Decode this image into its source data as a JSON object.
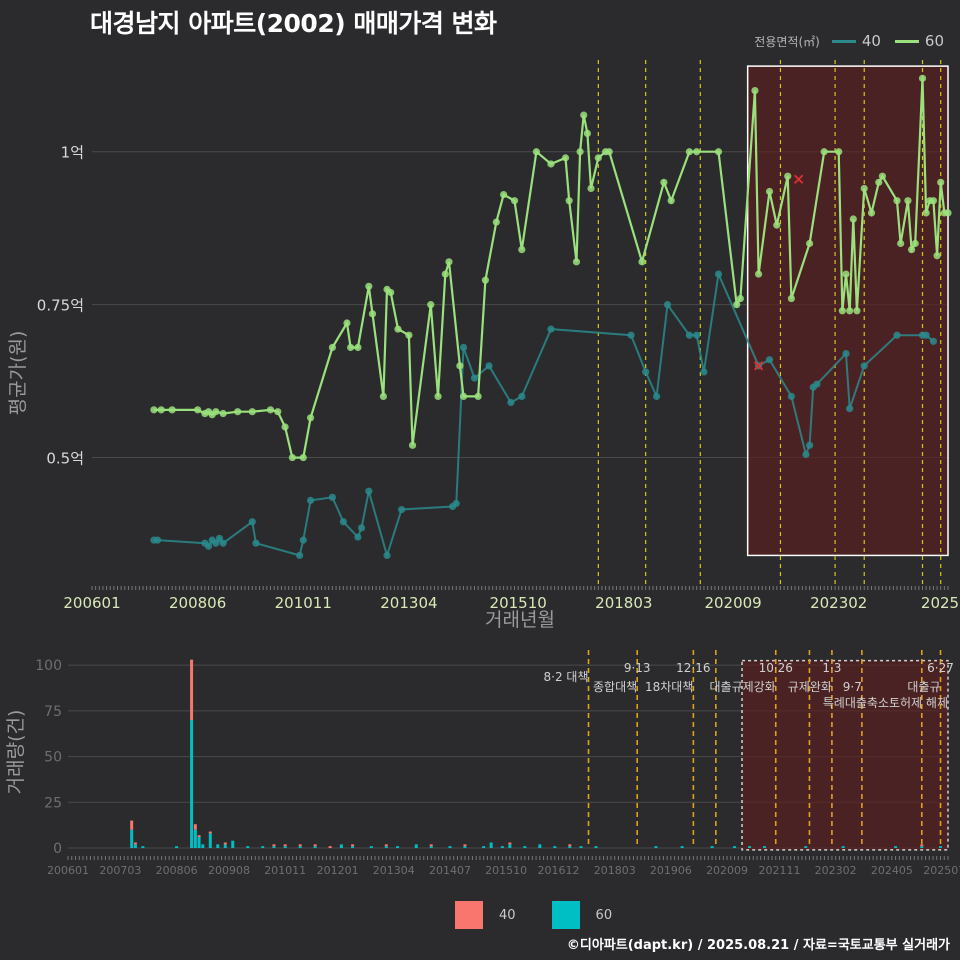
{
  "title": "대경남지 아파트(2002) 매매가격 변화",
  "caption": "©디아파트(dapt.kr) / 2025.08.21 / 자료=국토교통부 실거래가",
  "legend_top": {
    "title": "전용면적(㎡)",
    "items": [
      {
        "label": "40",
        "color": "#2a8a8c"
      },
      {
        "label": "60",
        "color": "#9ae07c"
      }
    ]
  },
  "legend_bottom": {
    "items": [
      {
        "label": "40",
        "color": "#f8766d"
      },
      {
        "label": "60",
        "color": "#00bfc4"
      }
    ]
  },
  "colors": {
    "background": "#2b2b2d",
    "grid": "#4a4a4a",
    "series_40": "#2a8a8c",
    "series_60": "#9ae07c",
    "vline_main": "#d4c81e",
    "vline_vol": "#e0a020",
    "highlight_fill": "#5a2020",
    "tick_text_main": "#d8e8b8",
    "tick_text_vol": "#6e6e6e"
  },
  "chart_data": [
    {
      "type": "line",
      "xlabel": "거래년월",
      "ylabel": "평균가(원)",
      "x_range": [
        "2006-01",
        "2025-08"
      ],
      "ylim": [
        0.29,
        1.15
      ],
      "y_ticks": [
        {
          "value": 0.5,
          "label": "0.5억"
        },
        {
          "value": 0.75,
          "label": "0.75억"
        },
        {
          "value": 1.0,
          "label": "1억"
        }
      ],
      "x_ticks": [
        "200601",
        "200806",
        "201011",
        "201304",
        "201510",
        "201803",
        "202009",
        "202302",
        "2025"
      ],
      "grid": true,
      "highlight_region": {
        "from": "2021-01",
        "to": "2025-08",
        "ymin": 0.34,
        "ymax": 1.14
      },
      "vlines": [
        "2017-08",
        "2018-09",
        "2019-12",
        "2021-10",
        "2023-01",
        "2023-09",
        "2025-01",
        "2025-06"
      ],
      "series": [
        {
          "name": "40",
          "points": [
            [
              "2007-06",
              0.365
            ],
            [
              "2007-07",
              0.365
            ],
            [
              "2008-08",
              0.36
            ],
            [
              "2008-09",
              0.355
            ],
            [
              "2008-10",
              0.365
            ],
            [
              "2008-11",
              0.36
            ],
            [
              "2008-12",
              0.368
            ],
            [
              "2009-01",
              0.36
            ],
            [
              "2009-09",
              0.395
            ],
            [
              "2009-10",
              0.36
            ],
            [
              "2010-10",
              0.34
            ],
            [
              "2010-11",
              0.365
            ],
            [
              "2011-01",
              0.43
            ],
            [
              "2011-07",
              0.435
            ],
            [
              "2011-10",
              0.395
            ],
            [
              "2012-02",
              0.37
            ],
            [
              "2012-03",
              0.385
            ],
            [
              "2012-05",
              0.445
            ],
            [
              "2012-10",
              0.34
            ],
            [
              "2013-02",
              0.415
            ],
            [
              "2014-04",
              0.42
            ],
            [
              "2014-05",
              0.425
            ],
            [
              "2014-07",
              0.68
            ],
            [
              "2014-10",
              0.63
            ],
            [
              "2015-02",
              0.65
            ],
            [
              "2015-08",
              0.59
            ],
            [
              "2015-11",
              0.6
            ],
            [
              "2016-07",
              0.71
            ],
            [
              "2018-05",
              0.7
            ],
            [
              "2018-09",
              0.64
            ],
            [
              "2018-12",
              0.6
            ],
            [
              "2019-03",
              0.75
            ],
            [
              "2019-09",
              0.7
            ],
            [
              "2019-11",
              0.7
            ],
            [
              "2020-01",
              0.64
            ],
            [
              "2020-05",
              0.8
            ],
            [
              "2021-04",
              0.65
            ],
            [
              "2021-07",
              0.66
            ],
            [
              "2022-01",
              0.6
            ],
            [
              "2022-05",
              0.505
            ],
            [
              "2022-06",
              0.52
            ],
            [
              "2022-07",
              0.615
            ],
            [
              "2022-08",
              0.62
            ],
            [
              "2023-04",
              0.67
            ],
            [
              "2023-05",
              0.58
            ],
            [
              "2023-09",
              0.65
            ],
            [
              "2024-06",
              0.7
            ],
            [
              "2025-01",
              0.7
            ],
            [
              "2025-02",
              0.7
            ],
            [
              "2025-04",
              0.69
            ]
          ]
        },
        {
          "name": "60",
          "points": [
            [
              "2007-06",
              0.578
            ],
            [
              "2007-08",
              0.578
            ],
            [
              "2007-11",
              0.578
            ],
            [
              "2008-06",
              0.578
            ],
            [
              "2008-08",
              0.572
            ],
            [
              "2008-09",
              0.575
            ],
            [
              "2008-10",
              0.57
            ],
            [
              "2008-11",
              0.575
            ],
            [
              "2009-01",
              0.572
            ],
            [
              "2009-05",
              0.575
            ],
            [
              "2009-09",
              0.575
            ],
            [
              "2010-02",
              0.578
            ],
            [
              "2010-04",
              0.575
            ],
            [
              "2010-06",
              0.55
            ],
            [
              "2010-08",
              0.5
            ],
            [
              "2010-11",
              0.5
            ],
            [
              "2011-01",
              0.565
            ],
            [
              "2011-07",
              0.68
            ],
            [
              "2011-11",
              0.72
            ],
            [
              "2011-12",
              0.68
            ],
            [
              "2012-02",
              0.68
            ],
            [
              "2012-05",
              0.78
            ],
            [
              "2012-06",
              0.735
            ],
            [
              "2012-09",
              0.6
            ],
            [
              "2012-10",
              0.775
            ],
            [
              "2012-11",
              0.77
            ],
            [
              "2013-01",
              0.71
            ],
            [
              "2013-04",
              0.7
            ],
            [
              "2013-05",
              0.52
            ],
            [
              "2013-10",
              0.75
            ],
            [
              "2013-12",
              0.6
            ],
            [
              "2014-02",
              0.8
            ],
            [
              "2014-03",
              0.82
            ],
            [
              "2014-06",
              0.65
            ],
            [
              "2014-07",
              0.6
            ],
            [
              "2014-11",
              0.6
            ],
            [
              "2015-01",
              0.79
            ],
            [
              "2015-04",
              0.885
            ],
            [
              "2015-06",
              0.93
            ],
            [
              "2015-09",
              0.92
            ],
            [
              "2015-11",
              0.84
            ],
            [
              "2016-03",
              1.0
            ],
            [
              "2016-07",
              0.98
            ],
            [
              "2016-11",
              0.99
            ],
            [
              "2016-12",
              0.92
            ],
            [
              "2017-02",
              0.82
            ],
            [
              "2017-03",
              1.0
            ],
            [
              "2017-04",
              1.06
            ],
            [
              "2017-05",
              1.03
            ],
            [
              "2017-06",
              0.94
            ],
            [
              "2017-08",
              0.99
            ],
            [
              "2017-10",
              1.0
            ],
            [
              "2017-11",
              1.0
            ],
            [
              "2018-08",
              0.82
            ],
            [
              "2019-02",
              0.95
            ],
            [
              "2019-04",
              0.92
            ],
            [
              "2019-09",
              1.0
            ],
            [
              "2019-11",
              1.0
            ],
            [
              "2020-05",
              1.0
            ],
            [
              "2020-10",
              0.75
            ],
            [
              "2020-11",
              0.76
            ],
            [
              "2021-03",
              1.1
            ],
            [
              "2021-04",
              0.8
            ],
            [
              "2021-07",
              0.935
            ],
            [
              "2021-09",
              0.88
            ],
            [
              "2021-12",
              0.96
            ],
            [
              "2022-01",
              0.76
            ],
            [
              "2022-06",
              0.85
            ],
            [
              "2022-10",
              1.0
            ],
            [
              "2023-02",
              1.0
            ],
            [
              "2023-03",
              0.74
            ],
            [
              "2023-04",
              0.8
            ],
            [
              "2023-05",
              0.74
            ],
            [
              "2023-06",
              0.89
            ],
            [
              "2023-07",
              0.74
            ],
            [
              "2023-09",
              0.94
            ],
            [
              "2023-11",
              0.9
            ],
            [
              "2024-01",
              0.95
            ],
            [
              "2024-02",
              0.96
            ],
            [
              "2024-06",
              0.92
            ],
            [
              "2024-07",
              0.85
            ],
            [
              "2024-09",
              0.92
            ],
            [
              "2024-10",
              0.84
            ],
            [
              "2024-11",
              0.85
            ],
            [
              "2025-01",
              1.12
            ],
            [
              "2025-02",
              0.9
            ],
            [
              "2025-03",
              0.92
            ],
            [
              "2025-04",
              0.92
            ],
            [
              "2025-05",
              0.83
            ],
            [
              "2025-06",
              0.95
            ],
            [
              "2025-07",
              0.9
            ],
            [
              "2025-08",
              0.9
            ]
          ]
        }
      ],
      "markers_cross": [
        [
          "2021-04",
          0.65
        ],
        [
          "2022-03",
          0.955
        ]
      ]
    },
    {
      "type": "bar",
      "stacked": true,
      "ylabel": "거래량(건)",
      "ylim": [
        0,
        105
      ],
      "y_ticks": [
        0,
        25,
        50,
        75,
        100
      ],
      "x_ticks": [
        "200601",
        "200703",
        "200806",
        "200908",
        "201011",
        "201201",
        "201304",
        "201407",
        "201510",
        "201612",
        "201803",
        "201906",
        "202009",
        "202111",
        "202302",
        "202405",
        "202507"
      ],
      "highlight_region": {
        "from": "2021-01",
        "to": "2025-08"
      },
      "bars": [
        {
          "date": "2007-06",
          "s40": 5,
          "s60": 10
        },
        {
          "date": "2007-07",
          "s40": 1,
          "s60": 2
        },
        {
          "date": "2007-09",
          "s40": 0,
          "s60": 1
        },
        {
          "date": "2008-06",
          "s40": 0,
          "s60": 1
        },
        {
          "date": "2008-10",
          "s40": 33,
          "s60": 70
        },
        {
          "date": "2008-11",
          "s40": 3,
          "s60": 10
        },
        {
          "date": "2008-12",
          "s40": 1,
          "s60": 6
        },
        {
          "date": "2009-01",
          "s40": 0,
          "s60": 2
        },
        {
          "date": "2009-03",
          "s40": 1,
          "s60": 8
        },
        {
          "date": "2009-05",
          "s40": 0,
          "s60": 2
        },
        {
          "date": "2009-07",
          "s40": 1,
          "s60": 2
        },
        {
          "date": "2009-09",
          "s40": 0,
          "s60": 4
        },
        {
          "date": "2010-01",
          "s40": 0,
          "s60": 1
        },
        {
          "date": "2010-05",
          "s40": 0,
          "s60": 1
        },
        {
          "date": "2010-08",
          "s40": 1,
          "s60": 1
        },
        {
          "date": "2010-11",
          "s40": 1,
          "s60": 1
        },
        {
          "date": "2011-03",
          "s40": 1,
          "s60": 1
        },
        {
          "date": "2011-07",
          "s40": 1,
          "s60": 1
        },
        {
          "date": "2011-11",
          "s40": 1,
          "s60": 0
        },
        {
          "date": "2012-02",
          "s40": 0,
          "s60": 2
        },
        {
          "date": "2012-05",
          "s40": 1,
          "s60": 1
        },
        {
          "date": "2012-10",
          "s40": 0,
          "s60": 1
        },
        {
          "date": "2013-02",
          "s40": 1,
          "s60": 1
        },
        {
          "date": "2013-05",
          "s40": 0,
          "s60": 1
        },
        {
          "date": "2013-10",
          "s40": 0,
          "s60": 2
        },
        {
          "date": "2014-02",
          "s40": 1,
          "s60": 1
        },
        {
          "date": "2014-07",
          "s40": 0,
          "s60": 1
        },
        {
          "date": "2014-11",
          "s40": 1,
          "s60": 1
        },
        {
          "date": "2015-04",
          "s40": 0,
          "s60": 1
        },
        {
          "date": "2015-06",
          "s40": 0,
          "s60": 3
        },
        {
          "date": "2015-09",
          "s40": 0,
          "s60": 1
        },
        {
          "date": "2015-11",
          "s40": 1,
          "s60": 2
        },
        {
          "date": "2016-03",
          "s40": 0,
          "s60": 1
        },
        {
          "date": "2016-07",
          "s40": 0,
          "s60": 2
        },
        {
          "date": "2016-11",
          "s40": 0,
          "s60": 1
        },
        {
          "date": "2017-03",
          "s40": 1,
          "s60": 1
        },
        {
          "date": "2017-06",
          "s40": 0,
          "s60": 1
        },
        {
          "date": "2017-10",
          "s40": 0,
          "s60": 1
        },
        {
          "date": "2019-02",
          "s40": 0,
          "s60": 1
        },
        {
          "date": "2019-09",
          "s40": 0,
          "s60": 1
        },
        {
          "date": "2020-05",
          "s40": 0,
          "s60": 1
        },
        {
          "date": "2020-11",
          "s40": 0,
          "s60": 1
        },
        {
          "date": "2021-03",
          "s40": 0,
          "s60": 1
        },
        {
          "date": "2021-07",
          "s40": 0,
          "s60": 1
        },
        {
          "date": "2022-06",
          "s40": 0,
          "s60": 1
        },
        {
          "date": "2023-04",
          "s40": 0,
          "s60": 1
        },
        {
          "date": "2024-06",
          "s40": 0,
          "s60": 1
        },
        {
          "date": "2025-01",
          "s40": 1,
          "s60": 1
        },
        {
          "date": "2025-06",
          "s40": 0,
          "s60": 1
        }
      ],
      "events": [
        {
          "date": "2017-08",
          "top": "",
          "label": "8·2 대책",
          "row": 1
        },
        {
          "date": "2018-09",
          "top": "9·13",
          "label": "종합대책",
          "row": 2
        },
        {
          "date": "2019-12",
          "top": "12·16",
          "label": "18차대책",
          "row": 2
        },
        {
          "date": "2020-06",
          "top": "",
          "label": "",
          "row": 0
        },
        {
          "date": "2021-10",
          "top": "10·26",
          "label": "대출규제강화",
          "row": 2
        },
        {
          "date": "2022-07",
          "top": "",
          "label": "",
          "row": 0
        },
        {
          "date": "2023-01",
          "top": "1·3",
          "label": "규제완화",
          "row": 2
        },
        {
          "date": "2023-09",
          "top": "",
          "label": "9·7",
          "row": 2
        },
        {
          "date": "2025-01",
          "top": "",
          "label": "",
          "row": 0
        },
        {
          "date": "2025-06",
          "top": "6·27",
          "label": "대출규",
          "row": 2
        }
      ],
      "event_extra_text": "특례대출축소토허제 해제"
    }
  ]
}
